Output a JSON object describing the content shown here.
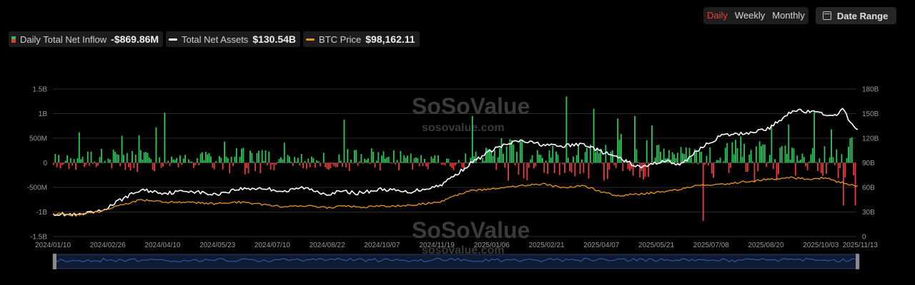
{
  "controls": {
    "periods": [
      "Daily",
      "Weekly",
      "Monthly"
    ],
    "active_period": "Daily",
    "date_range_label": "Date Range"
  },
  "legend": [
    {
      "label": "Daily Total Net Inflow",
      "value": "-$869.86M",
      "icon": "bar-icon",
      "colors": [
        "#2ec05a",
        "#e23c3c"
      ]
    },
    {
      "label": "Total Net Assets",
      "value": "$130.54B",
      "icon": "line-icon",
      "color": "#ffffff"
    },
    {
      "label": "BTC Price",
      "value": "$98,162.11",
      "icon": "line-icon",
      "color": "#e8961e"
    }
  ],
  "watermark": {
    "brand": "SoSoValue",
    "url": "sosovalue.com"
  },
  "chart_data": {
    "type": "bar",
    "left_axis": {
      "ticks": [
        "1.5B",
        "1B",
        "500M",
        "0",
        "-500M",
        "-1B",
        "-1.5B"
      ],
      "range": [
        -1500,
        1500
      ],
      "unit": "M"
    },
    "right_axis": {
      "ticks": [
        "180B",
        "150B",
        "120B",
        "90B",
        "60B",
        "30B",
        "0"
      ],
      "range": [
        0,
        180
      ],
      "unit": "B"
    },
    "x_ticks": [
      "2024/01/10",
      "2024/02/26",
      "2024/04/10",
      "2024/05/23",
      "2024/07/10",
      "2024/08/22",
      "2024/10/07",
      "2024/11/19",
      "2025/01/06",
      "2025/02/21",
      "2025/04/07",
      "2025/05/21",
      "2025/07/08",
      "2025/08/20",
      "2025/10/03",
      "2025/11/13"
    ],
    "grid": true,
    "inflow_colors": {
      "positive": "#2ec05a",
      "negative": "#e23c3c"
    },
    "series": [
      {
        "name": "Total Net Assets",
        "type": "line",
        "axis": "right",
        "color": "#ffffff",
        "points": [
          [
            0,
            28
          ],
          [
            0.03,
            26
          ],
          [
            0.06,
            31
          ],
          [
            0.09,
            48
          ],
          [
            0.11,
            57
          ],
          [
            0.14,
            53
          ],
          [
            0.17,
            56
          ],
          [
            0.2,
            51
          ],
          [
            0.23,
            58
          ],
          [
            0.26,
            59
          ],
          [
            0.29,
            55
          ],
          [
            0.31,
            60
          ],
          [
            0.34,
            52
          ],
          [
            0.36,
            55
          ],
          [
            0.38,
            53
          ],
          [
            0.41,
            58
          ],
          [
            0.44,
            54
          ],
          [
            0.46,
            58
          ],
          [
            0.48,
            62
          ],
          [
            0.5,
            75
          ],
          [
            0.52,
            90
          ],
          [
            0.55,
            108
          ],
          [
            0.58,
            117
          ],
          [
            0.61,
            112
          ],
          [
            0.63,
            110
          ],
          [
            0.66,
            113
          ],
          [
            0.68,
            104
          ],
          [
            0.7,
            97
          ],
          [
            0.73,
            84
          ],
          [
            0.76,
            93
          ],
          [
            0.78,
            87
          ],
          [
            0.8,
            105
          ],
          [
            0.83,
            123
          ],
          [
            0.86,
            126
          ],
          [
            0.89,
            132
          ],
          [
            0.92,
            155
          ],
          [
            0.94,
            152
          ],
          [
            0.96,
            150
          ],
          [
            0.97,
            145
          ],
          [
            0.98,
            157
          ],
          [
            0.985,
            150
          ],
          [
            0.99,
            138
          ],
          [
            1,
            130.54
          ]
        ]
      },
      {
        "name": "BTC Price",
        "type": "line",
        "axis": "right",
        "color": "#e8961e",
        "points": [
          [
            0,
            28
          ],
          [
            0.03,
            26
          ],
          [
            0.06,
            31
          ],
          [
            0.09,
            40
          ],
          [
            0.11,
            45
          ],
          [
            0.14,
            42
          ],
          [
            0.17,
            42
          ],
          [
            0.2,
            40
          ],
          [
            0.23,
            42
          ],
          [
            0.26,
            39
          ],
          [
            0.29,
            36
          ],
          [
            0.31,
            38
          ],
          [
            0.34,
            35
          ],
          [
            0.36,
            37
          ],
          [
            0.38,
            36
          ],
          [
            0.41,
            37
          ],
          [
            0.44,
            38
          ],
          [
            0.46,
            40
          ],
          [
            0.48,
            42
          ],
          [
            0.5,
            50
          ],
          [
            0.52,
            56
          ],
          [
            0.55,
            58
          ],
          [
            0.58,
            62
          ],
          [
            0.61,
            64
          ],
          [
            0.63,
            60
          ],
          [
            0.66,
            62
          ],
          [
            0.68,
            55
          ],
          [
            0.7,
            50
          ],
          [
            0.73,
            52
          ],
          [
            0.76,
            55
          ],
          [
            0.78,
            58
          ],
          [
            0.8,
            62
          ],
          [
            0.83,
            64
          ],
          [
            0.86,
            67
          ],
          [
            0.89,
            70
          ],
          [
            0.92,
            72
          ],
          [
            0.94,
            70
          ],
          [
            0.96,
            72
          ],
          [
            0.97,
            68
          ],
          [
            0.98,
            66
          ],
          [
            0.99,
            63
          ],
          [
            1,
            62
          ]
        ]
      }
    ]
  }
}
